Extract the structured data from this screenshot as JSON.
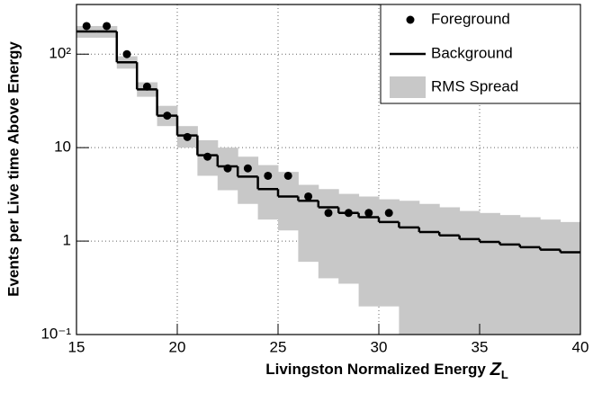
{
  "chart_data": {
    "type": "step-histogram",
    "xlabel": "Livingston Normalized Energy",
    "xlabel_symbol": "Z",
    "xlabel_subscript": "L",
    "ylabel": "Events per Live time Above Energy",
    "xlim": [
      15,
      40
    ],
    "xticks": [
      15,
      20,
      25,
      30,
      35,
      40
    ],
    "ylim": [
      0.1,
      340
    ],
    "log_y": true,
    "yticks": [
      {
        "value": 0.1,
        "label": "10⁻¹"
      },
      1,
      10,
      {
        "value": 100,
        "label": "10²"
      }
    ],
    "grid": true,
    "legend": "upper right",
    "bins": [
      15,
      16,
      17,
      18,
      19,
      20,
      21,
      22,
      23,
      24,
      25,
      26,
      27,
      28,
      29,
      30,
      31,
      32,
      33,
      34,
      35,
      36,
      37,
      38,
      39,
      40
    ],
    "foreground": {
      "name": "Foreground",
      "color": "#000000",
      "x": [
        15.5,
        16.5,
        17.5,
        18.5,
        19.5,
        20.5,
        21.5,
        22.5,
        23.5,
        24.5,
        25.5,
        26.5,
        27.5,
        28.5,
        29.5,
        30.5
      ],
      "values": [
        200,
        200,
        100,
        45,
        22,
        13,
        8,
        6,
        6,
        5,
        5,
        3,
        2,
        2,
        2,
        2
      ]
    },
    "background": {
      "name": "Background",
      "color": "#000000",
      "values": [
        175,
        175,
        82,
        42,
        22,
        13.5,
        8.3,
        6.3,
        4.9,
        3.6,
        3.0,
        2.7,
        2.3,
        2.0,
        1.8,
        1.6,
        1.4,
        1.25,
        1.15,
        1.05,
        0.98,
        0.92,
        0.86,
        0.81,
        0.76
      ]
    },
    "spread": {
      "name": "RMS Spread",
      "color": "#c8c8c8",
      "low": [
        150,
        150,
        70,
        35,
        17,
        10,
        5,
        3.5,
        2.5,
        1.7,
        1.3,
        0.6,
        0.4,
        0.35,
        0.2,
        0.2,
        0.05,
        0.05,
        0.05,
        0.05,
        0.05,
        0.05,
        0.05,
        0.05,
        0.05
      ],
      "high": [
        200,
        200,
        95,
        50,
        28,
        17,
        12,
        10,
        8,
        6.5,
        5.5,
        4,
        3.6,
        3.2,
        3,
        2.8,
        2.7,
        2.5,
        2.3,
        2.1,
        2.0,
        1.9,
        1.8,
        1.7,
        1.6
      ]
    }
  }
}
